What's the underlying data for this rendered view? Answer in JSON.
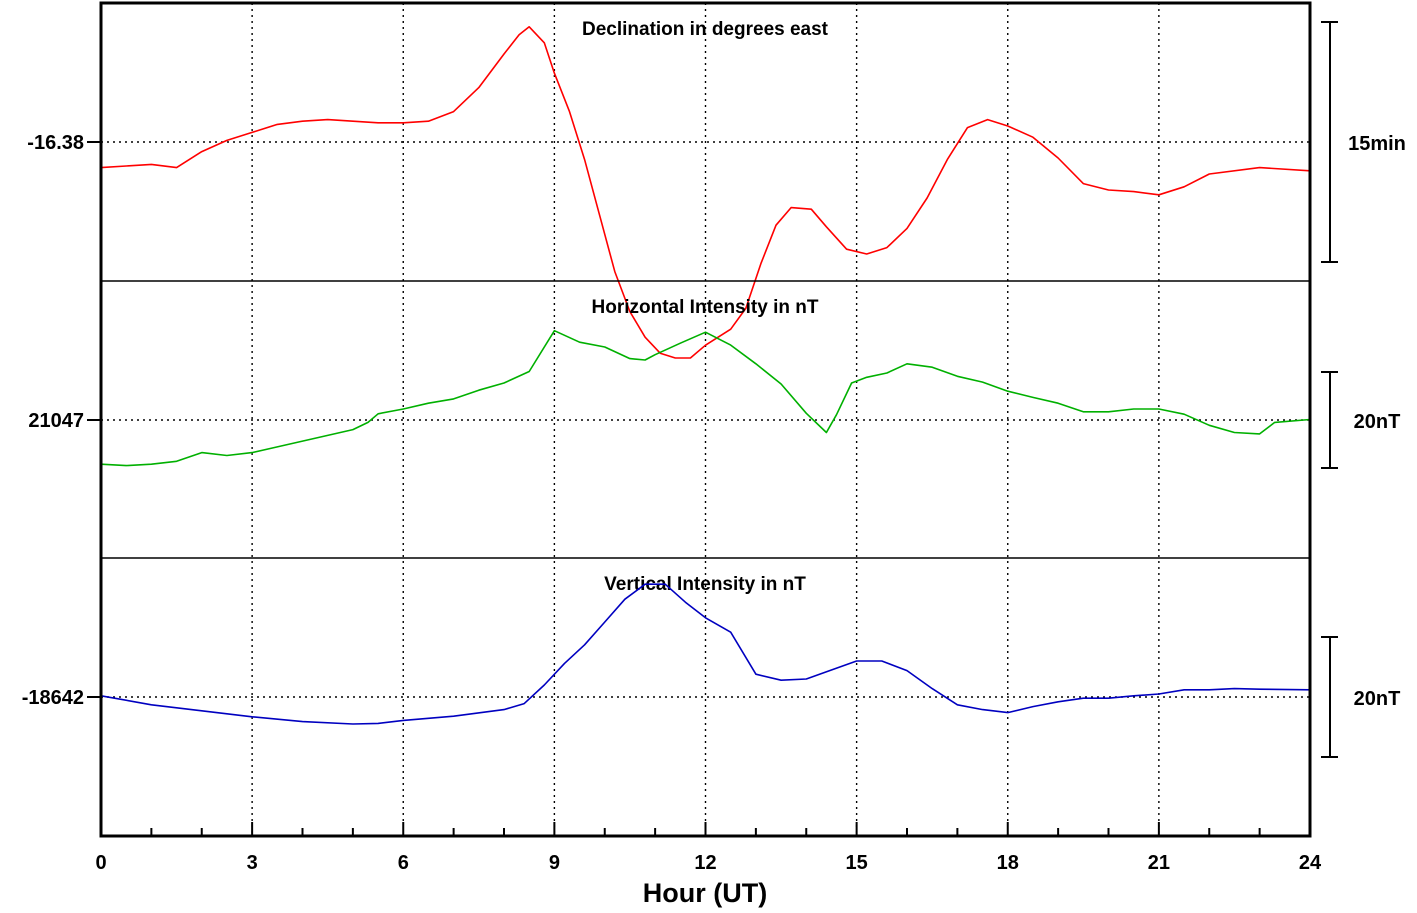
{
  "chart_data": {
    "type": "line",
    "x_axis": {
      "title": "Hour (UT)",
      "range": [
        0,
        24
      ],
      "major_ticks": [
        0,
        3,
        6,
        9,
        12,
        15,
        18,
        21,
        24
      ],
      "tick_labels": [
        "0",
        "3",
        "6",
        "9",
        "12",
        "15",
        "18",
        "21",
        "24"
      ],
      "minor_step": 1,
      "vertical_grid": "dotted"
    },
    "panels": [
      {
        "title": "Declination in degrees east",
        "baseline_label": "-16.38",
        "scale_label": "15min",
        "scale_span": 15,
        "color": "#ff0000",
        "unit": "min",
        "series": [
          [
            0,
            -1.6
          ],
          [
            0.5,
            -1.5
          ],
          [
            1,
            -1.4
          ],
          [
            1.5,
            -1.6
          ],
          [
            2,
            -0.6
          ],
          [
            2.5,
            0.1
          ],
          [
            3,
            0.6
          ],
          [
            3.5,
            1.1
          ],
          [
            4,
            1.3
          ],
          [
            4.5,
            1.4
          ],
          [
            5,
            1.3
          ],
          [
            5.5,
            1.2
          ],
          [
            6,
            1.2
          ],
          [
            6.5,
            1.3
          ],
          [
            7,
            1.9
          ],
          [
            7.5,
            3.4
          ],
          [
            8,
            5.5
          ],
          [
            8.3,
            6.7
          ],
          [
            8.5,
            7.2
          ],
          [
            8.8,
            6.2
          ],
          [
            9,
            4.3
          ],
          [
            9.3,
            1.9
          ],
          [
            9.6,
            -1.1
          ],
          [
            9.9,
            -4.6
          ],
          [
            10.2,
            -8.1
          ],
          [
            10.5,
            -10.6
          ],
          [
            10.8,
            -12.2
          ],
          [
            11.1,
            -13.2
          ],
          [
            11.4,
            -13.5
          ],
          [
            11.7,
            -13.5
          ],
          [
            12,
            -12.7
          ],
          [
            12.5,
            -11.7
          ],
          [
            12.8,
            -10.4
          ],
          [
            13.1,
            -7.6
          ],
          [
            13.4,
            -5.2
          ],
          [
            13.7,
            -4.1
          ],
          [
            14.1,
            -4.2
          ],
          [
            14.4,
            -5.3
          ],
          [
            14.8,
            -6.7
          ],
          [
            15.2,
            -7.0
          ],
          [
            15.6,
            -6.6
          ],
          [
            16,
            -5.4
          ],
          [
            16.4,
            -3.5
          ],
          [
            16.8,
            -1.1
          ],
          [
            17.2,
            0.9
          ],
          [
            17.6,
            1.4
          ],
          [
            18,
            1.0
          ],
          [
            18.5,
            0.3
          ],
          [
            19,
            -1.0
          ],
          [
            19.5,
            -2.6
          ],
          [
            20,
            -3.0
          ],
          [
            20.5,
            -3.1
          ],
          [
            21,
            -3.3
          ],
          [
            21.5,
            -2.8
          ],
          [
            22,
            -2.0
          ],
          [
            23,
            -1.6
          ],
          [
            24,
            -1.8
          ]
        ]
      },
      {
        "title": "Horizontal Intensity in nT",
        "baseline_label": "21047",
        "scale_label": "20nT",
        "scale_span": 20,
        "color": "#00b000",
        "unit": "nT",
        "series": [
          [
            0,
            -9.2
          ],
          [
            0.5,
            -9.5
          ],
          [
            1,
            -9.2
          ],
          [
            1.5,
            -8.6
          ],
          [
            2,
            -6.8
          ],
          [
            2.5,
            -7.4
          ],
          [
            3,
            -6.8
          ],
          [
            3.5,
            -5.6
          ],
          [
            4,
            -4.4
          ],
          [
            4.5,
            -3.2
          ],
          [
            5,
            -2.0
          ],
          [
            5.3,
            -0.5
          ],
          [
            5.5,
            1.3
          ],
          [
            6,
            2.3
          ],
          [
            6.5,
            3.5
          ],
          [
            7,
            4.4
          ],
          [
            7.5,
            6.2
          ],
          [
            8,
            7.7
          ],
          [
            8.5,
            10.1
          ],
          [
            9,
            18.6
          ],
          [
            9.5,
            16.2
          ],
          [
            10,
            15.2
          ],
          [
            10.5,
            12.8
          ],
          [
            10.8,
            12.5
          ],
          [
            11,
            13.6
          ],
          [
            11.5,
            16.0
          ],
          [
            12,
            18.3
          ],
          [
            12.5,
            15.6
          ],
          [
            13,
            11.7
          ],
          [
            13.5,
            7.5
          ],
          [
            14,
            1.4
          ],
          [
            14.4,
            -2.6
          ],
          [
            14.6,
            1.1
          ],
          [
            14.9,
            7.7
          ],
          [
            15.2,
            8.9
          ],
          [
            15.6,
            9.8
          ],
          [
            16,
            11.7
          ],
          [
            16.5,
            11.0
          ],
          [
            17,
            9.1
          ],
          [
            17.5,
            7.9
          ],
          [
            18,
            6.0
          ],
          [
            18.5,
            4.7
          ],
          [
            19,
            3.5
          ],
          [
            19.5,
            1.7
          ],
          [
            20,
            1.7
          ],
          [
            20.5,
            2.3
          ],
          [
            21,
            2.3
          ],
          [
            21.5,
            1.2
          ],
          [
            22,
            -1.1
          ],
          [
            22.5,
            -2.6
          ],
          [
            23,
            -2.9
          ],
          [
            23.3,
            -0.5
          ],
          [
            24,
            0.1
          ]
        ]
      },
      {
        "title": "Vertical Intensity in nT",
        "baseline_label": "-18642",
        "scale_label": "20nT",
        "scale_span": 20,
        "color": "#0000c0",
        "unit": "nT",
        "series": [
          [
            0,
            0.2
          ],
          [
            1,
            -1.3
          ],
          [
            2,
            -2.3
          ],
          [
            3,
            -3.3
          ],
          [
            4,
            -4.1
          ],
          [
            5,
            -4.5
          ],
          [
            5.5,
            -4.4
          ],
          [
            6,
            -3.9
          ],
          [
            7,
            -3.2
          ],
          [
            8,
            -2.1
          ],
          [
            8.4,
            -1.1
          ],
          [
            8.8,
            2.0
          ],
          [
            9.2,
            5.6
          ],
          [
            9.6,
            8.7
          ],
          [
            10,
            12.5
          ],
          [
            10.4,
            16.3
          ],
          [
            10.8,
            18.8
          ],
          [
            11.2,
            18.8
          ],
          [
            11.6,
            15.8
          ],
          [
            12,
            13.2
          ],
          [
            12.5,
            10.8
          ],
          [
            13,
            3.8
          ],
          [
            13.5,
            2.8
          ],
          [
            14,
            3.0
          ],
          [
            14.5,
            4.5
          ],
          [
            15,
            6.0
          ],
          [
            15.5,
            6.0
          ],
          [
            16,
            4.4
          ],
          [
            16.5,
            1.4
          ],
          [
            17,
            -1.3
          ],
          [
            17.5,
            -2.1
          ],
          [
            18,
            -2.6
          ],
          [
            18.5,
            -1.6
          ],
          [
            19,
            -0.8
          ],
          [
            19.5,
            -0.2
          ],
          [
            20,
            -0.2
          ],
          [
            20.5,
            0.2
          ],
          [
            21,
            0.5
          ],
          [
            21.5,
            1.2
          ],
          [
            22,
            1.2
          ],
          [
            22.5,
            1.4
          ],
          [
            23,
            1.3
          ],
          [
            24,
            1.2
          ]
        ]
      }
    ]
  }
}
